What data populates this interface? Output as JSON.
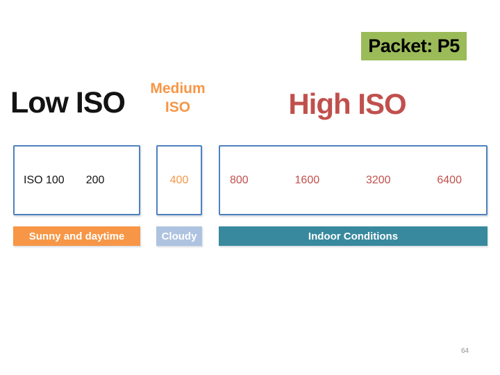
{
  "slide": {
    "badge": {
      "label": "Packet: P5",
      "bg_color": "#9BBB59",
      "text_color": "#000000"
    },
    "headings": {
      "low": {
        "label": "Low ISO",
        "color": "#131313"
      },
      "medium": {
        "label": "Medium ISO",
        "color": "#F79646"
      },
      "high": {
        "label": "High ISO",
        "color": "#C0504D"
      }
    },
    "iso_boxes": [
      {
        "name": "low-iso-box",
        "values": [
          "ISO 100",
          "200"
        ],
        "text_color": "#131313",
        "border_color": "#4F81BD"
      },
      {
        "name": "medium-iso-box",
        "values": [
          "400"
        ],
        "text_color": "#F79646",
        "border_color": "#4F81BD"
      },
      {
        "name": "high-iso-box",
        "values": [
          "800",
          "1600",
          "3200",
          "6400"
        ],
        "text_color": "#C0504D",
        "border_color": "#4F81BD"
      }
    ],
    "condition_labels": [
      {
        "label": "Sunny and daytime",
        "bg_color": "#F79646",
        "text_color": "#ffffff"
      },
      {
        "label": "Cloudy",
        "bg_color": "#AEC3E0",
        "text_color": "#ffffff"
      },
      {
        "label": "Indoor Conditions",
        "bg_color": "#38899E",
        "text_color": "#ffffff"
      }
    ],
    "page_number": "64"
  }
}
